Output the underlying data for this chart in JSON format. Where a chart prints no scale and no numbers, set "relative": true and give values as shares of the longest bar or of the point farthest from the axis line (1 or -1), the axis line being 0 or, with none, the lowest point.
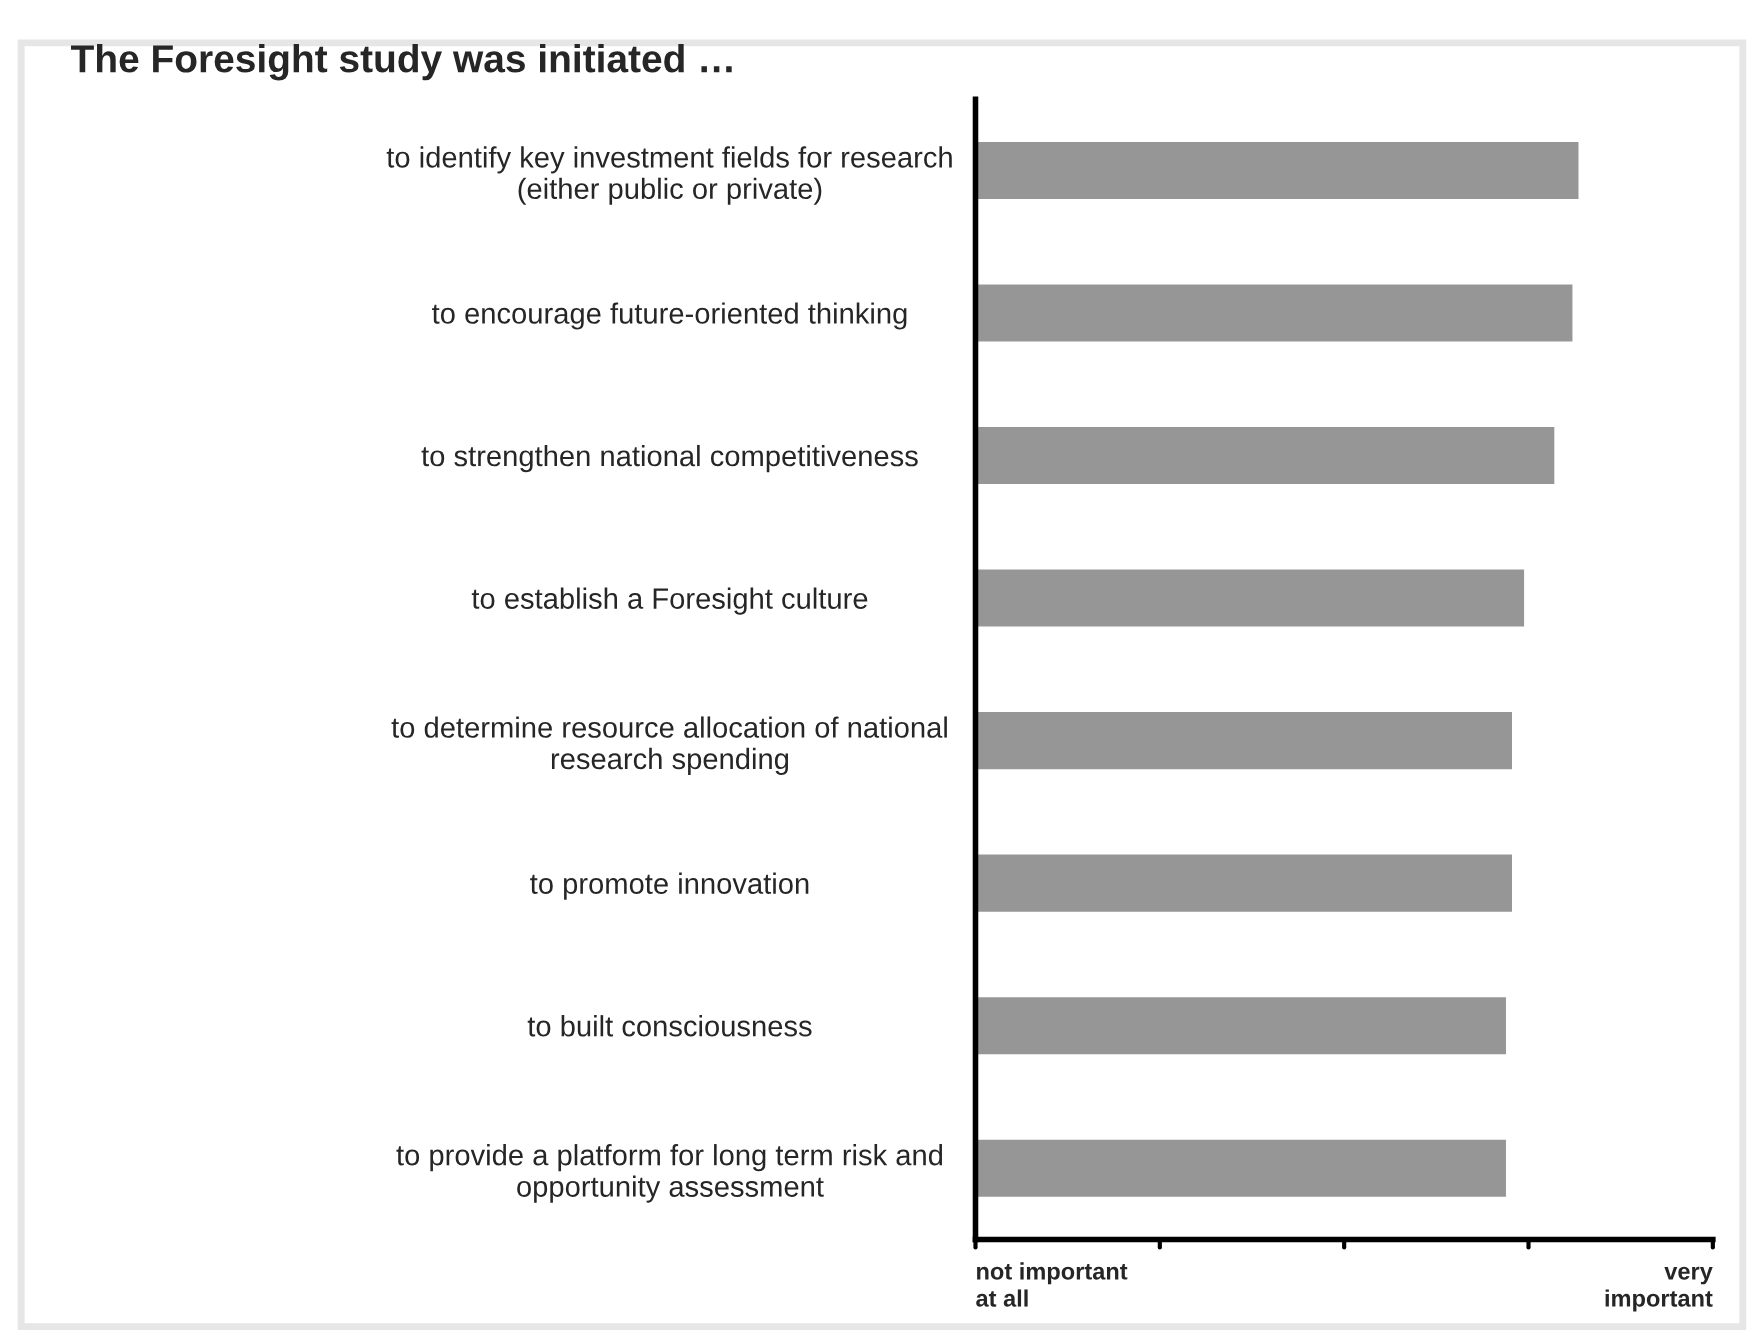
{
  "chart_data": {
    "type": "bar",
    "orientation": "horizontal",
    "relative": true,
    "title": "The Foresight study was initiated …",
    "categories": [
      "to identify key investment fields for research\n(either public or private)",
      "to encourage future-oriented thinking",
      "to strengthen national competitiveness",
      "to establish a Foresight culture",
      "to determine resource allocation of national\nresearch spending",
      "to promote innovation",
      "to built consciousness",
      "to provide a platform for long term risk and\nopportunity assessment"
    ],
    "values": [
      1,
      0.99,
      0.96,
      0.91,
      0.89,
      0.89,
      0.88,
      0.88
    ],
    "color": "#969696",
    "annotations": [
      "not important\nat all",
      "very\nimportant"
    ],
    "grid": false
  }
}
